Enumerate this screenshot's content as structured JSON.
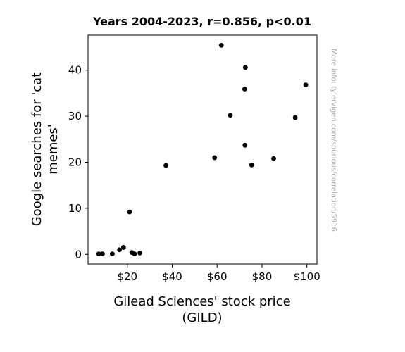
{
  "chart_data": {
    "type": "scatter",
    "title": "Years 2004-2023, r=0.856, p<0.01",
    "xlabel_lines": [
      "Gilead Sciences' stock price",
      "(GILD)"
    ],
    "ylabel_lines": [
      "Google searches for 'cat",
      "memes'"
    ],
    "side_note": "More info: tylervigen.com/spurious/correlation/5916",
    "xlim": [
      2.5,
      104.5
    ],
    "ylim": [
      -2.1,
      47.6
    ],
    "x_ticks": [
      {
        "value": 20,
        "label": "$20"
      },
      {
        "value": 40,
        "label": "$40"
      },
      {
        "value": 60,
        "label": "$60"
      },
      {
        "value": 80,
        "label": "$80"
      },
      {
        "value": 100,
        "label": "$100"
      }
    ],
    "y_ticks": [
      {
        "value": 0,
        "label": "0"
      },
      {
        "value": 10,
        "label": "10"
      },
      {
        "value": 20,
        "label": "20"
      },
      {
        "value": 30,
        "label": "30"
      },
      {
        "value": 40,
        "label": "40"
      }
    ],
    "grid": false,
    "marker_color": "#000000",
    "points": [
      {
        "x": 7.3,
        "y": 0.1
      },
      {
        "x": 8.9,
        "y": 0.1
      },
      {
        "x": 13.3,
        "y": 0.1
      },
      {
        "x": 16.5,
        "y": 1.0
      },
      {
        "x": 18.3,
        "y": 1.5
      },
      {
        "x": 21.0,
        "y": 9.2
      },
      {
        "x": 22.0,
        "y": 0.4
      },
      {
        "x": 23.2,
        "y": 0.1
      },
      {
        "x": 25.6,
        "y": 0.3
      },
      {
        "x": 37.2,
        "y": 19.3
      },
      {
        "x": 58.9,
        "y": 21.0
      },
      {
        "x": 61.9,
        "y": 45.4
      },
      {
        "x": 65.9,
        "y": 30.2
      },
      {
        "x": 72.3,
        "y": 35.9
      },
      {
        "x": 72.4,
        "y": 23.7
      },
      {
        "x": 72.6,
        "y": 40.6
      },
      {
        "x": 75.4,
        "y": 19.4
      },
      {
        "x": 85.2,
        "y": 20.8
      },
      {
        "x": 94.8,
        "y": 29.7
      },
      {
        "x": 99.5,
        "y": 36.8
      }
    ]
  }
}
